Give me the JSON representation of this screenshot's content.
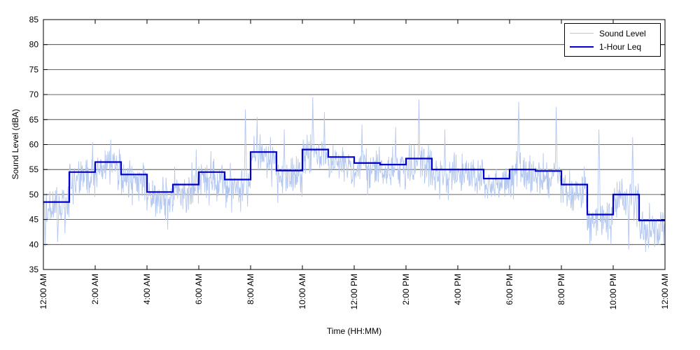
{
  "chart_data": {
    "type": "line",
    "title": "",
    "xlabel": "Time (HH:MM)",
    "ylabel": "Sound Level (dBA)",
    "ylim": [
      35,
      85
    ],
    "ytick_step": 5,
    "x_hours": 24,
    "xtick_every_hours": 2,
    "xtick_labels": [
      "12:00 AM",
      "2:00 AM",
      "4:00 AM",
      "6:00 AM",
      "8:00 AM",
      "10:00 AM",
      "12:00 PM",
      "2:00 PM",
      "4:00 PM",
      "6:00 PM",
      "8:00 PM",
      "10:00 PM",
      "12:00 AM"
    ],
    "grid": {
      "horizontal": true,
      "vertical": false,
      "color": "#333333"
    },
    "legend": {
      "position": "top-right",
      "entries": [
        {
          "label": "Sound Level",
          "color": "#b3c7f0",
          "line_width": 1
        },
        {
          "label": "1-Hour Leq",
          "color": "#0000cd",
          "line_width": 2.5
        }
      ]
    },
    "series": [
      {
        "name": "Sound Level",
        "type": "noisy_minute",
        "color": "#b3c7f0",
        "gen": {
          "seed": 12345,
          "offset": -1.3,
          "sd": 2.1,
          "clip": [
            36.8,
            70.5
          ],
          "spikes": [
            [
              1.9,
              60.5
            ],
            [
              2.6,
              61
            ],
            [
              5.9,
              59
            ],
            [
              7.8,
              67
            ],
            [
              8.25,
              65.5
            ],
            [
              9.3,
              63
            ],
            [
              10.4,
              69.5
            ],
            [
              10.85,
              66.5
            ],
            [
              12.3,
              64
            ],
            [
              13.6,
              63.5
            ],
            [
              14.5,
              69
            ],
            [
              15.5,
              63
            ],
            [
              18.35,
              68.5
            ],
            [
              19.8,
              67.5
            ],
            [
              21.45,
              63
            ],
            [
              22.75,
              61.5
            ]
          ],
          "dips": [
            [
              0.07,
              38.5
            ],
            [
              0.55,
              40.5
            ],
            [
              4.8,
              43
            ],
            [
              21.1,
              40
            ],
            [
              22.6,
              39
            ],
            [
              23.25,
              38.5
            ],
            [
              23.6,
              39.5
            ]
          ]
        }
      },
      {
        "name": "1-Hour Leq",
        "type": "step_hourly",
        "color": "#0000cd",
        "values": [
          48.5,
          54.5,
          56.5,
          54,
          50.5,
          52,
          54.5,
          53,
          58.5,
          54.8,
          59,
          57.5,
          56.3,
          56,
          57.2,
          55,
          55,
          53.2,
          55,
          54.7,
          52,
          46,
          50,
          44.8
        ]
      }
    ]
  }
}
